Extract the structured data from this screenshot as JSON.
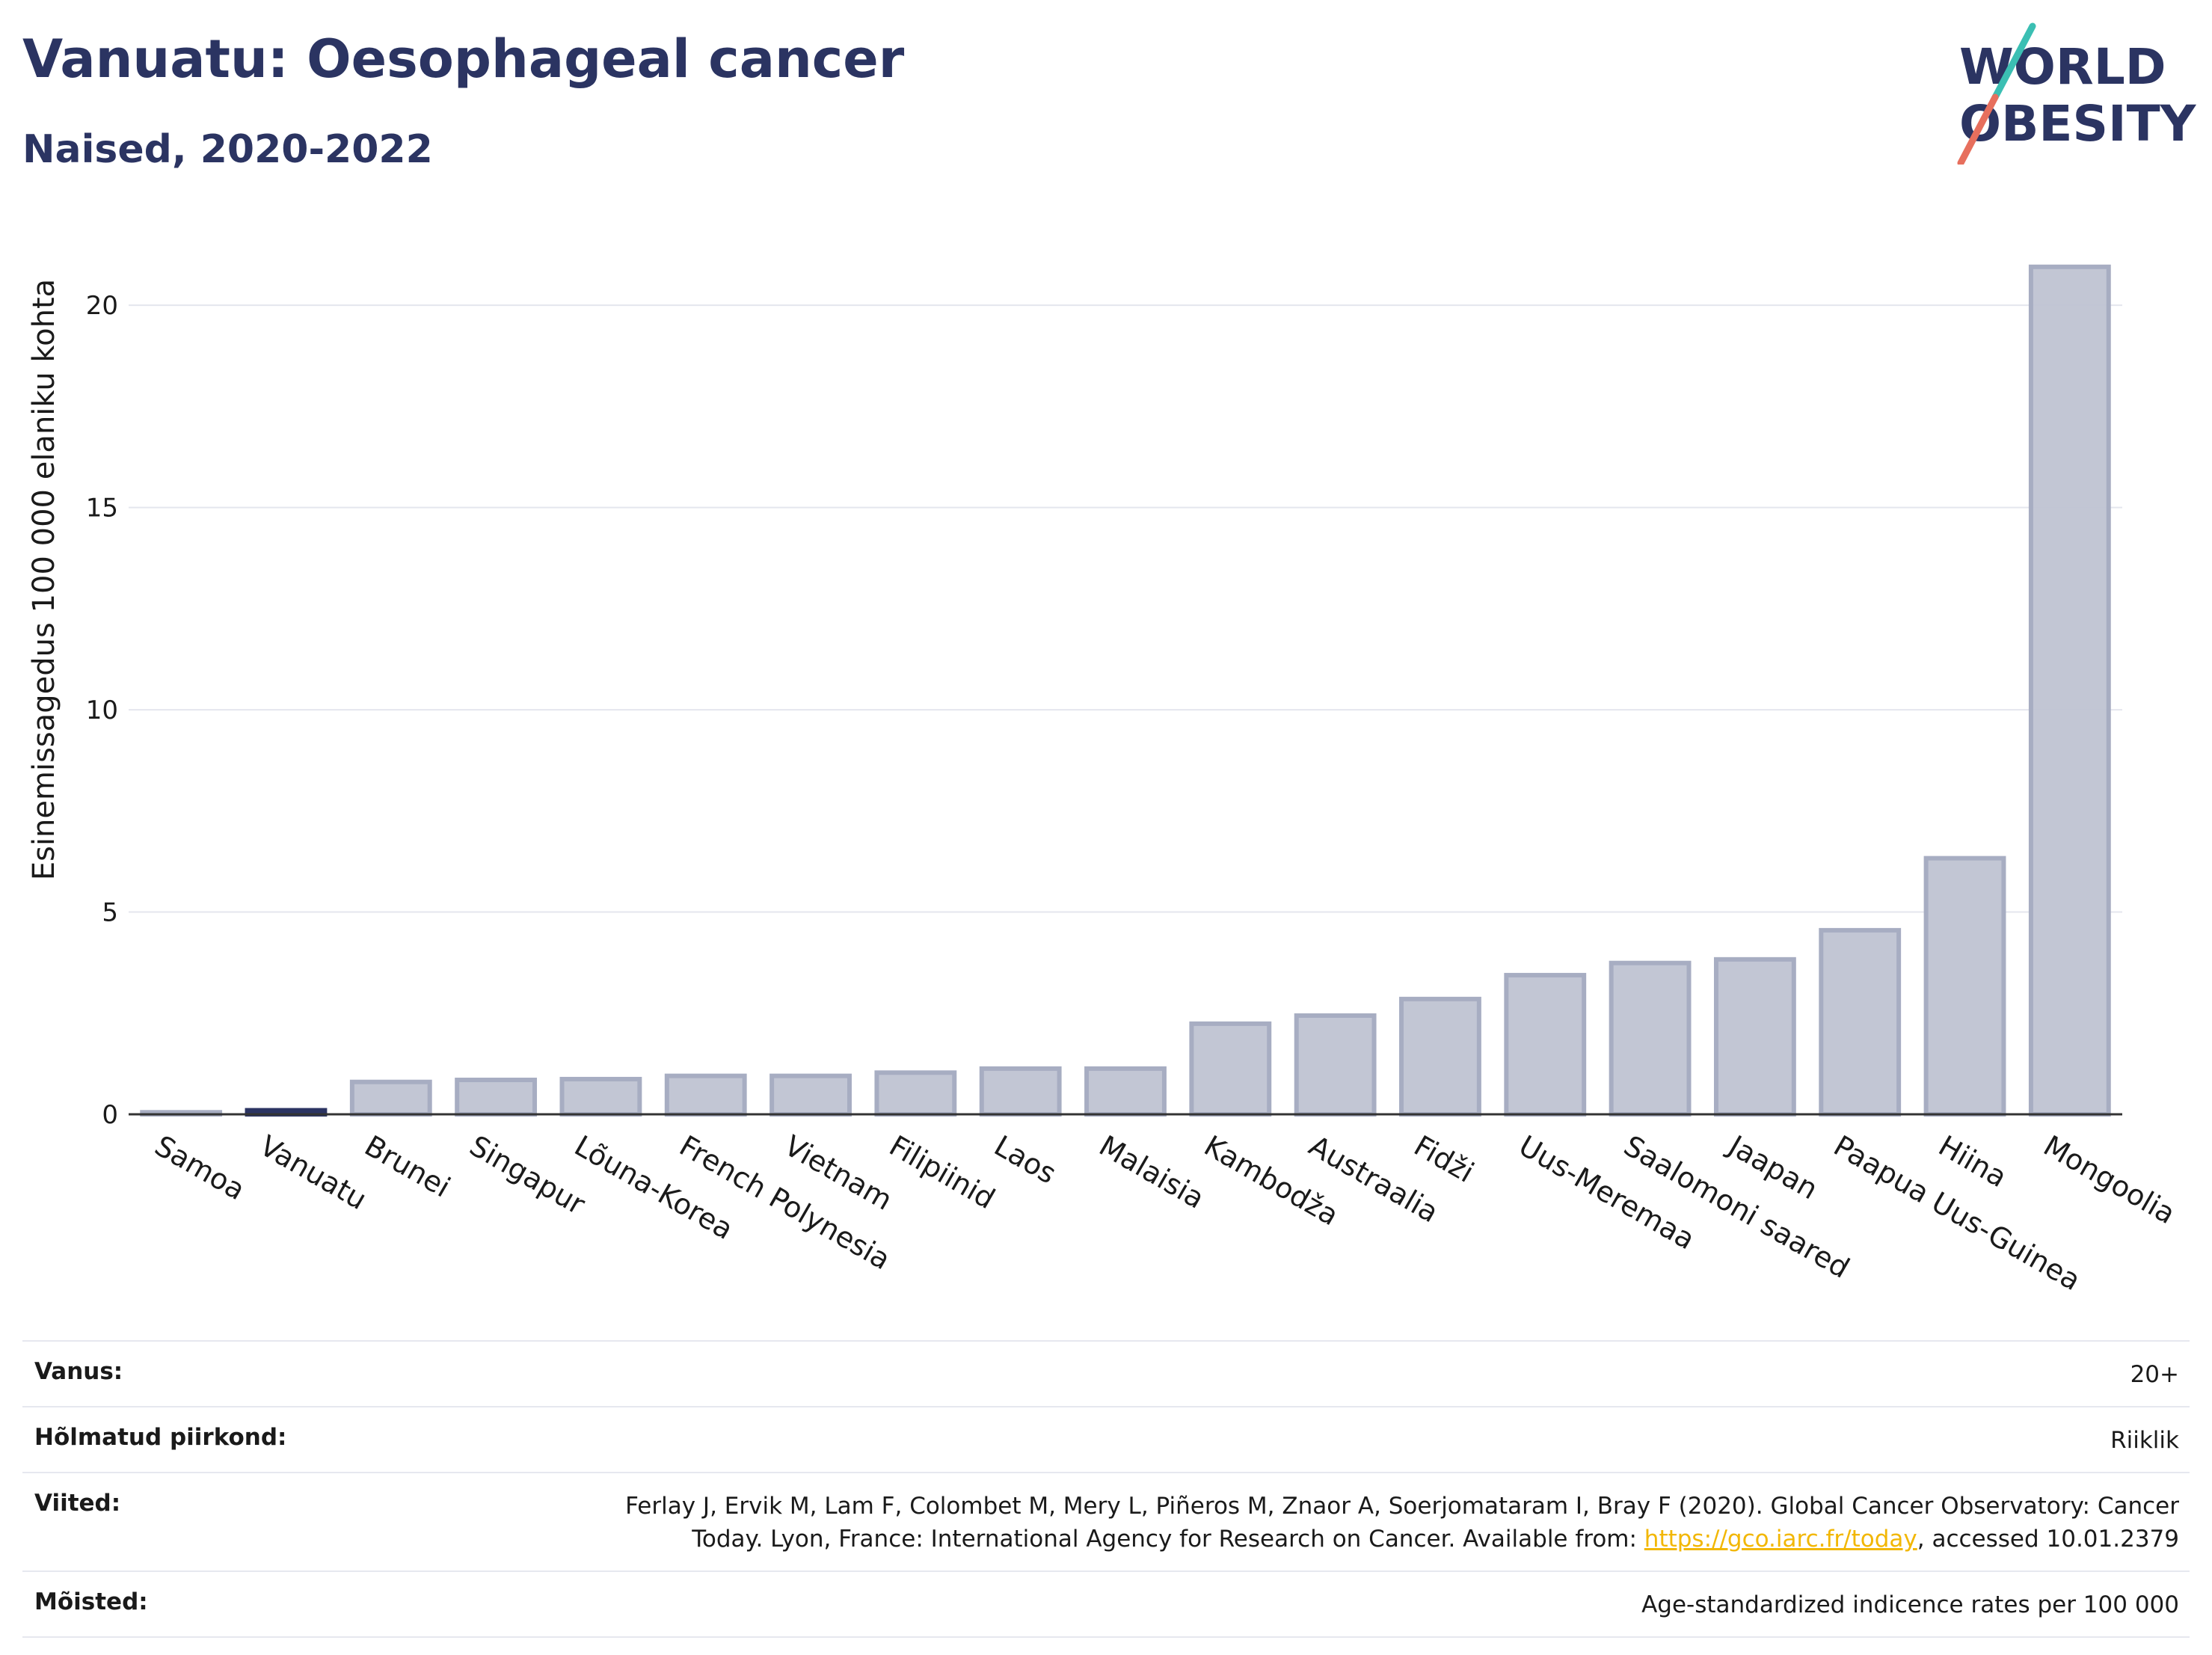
{
  "header": {
    "title": "Vanuatu: Oesophageal cancer",
    "subtitle": "Naised, 2020-2022"
  },
  "logo": {
    "line1": "WORLD",
    "line2": "OBESITY",
    "text_color": "#2b3462",
    "slash_top_color": "#3bbfb3",
    "slash_bottom_color": "#e76f5d"
  },
  "chart_data": {
    "type": "bar",
    "title": "Vanuatu: Oesophageal cancer",
    "subtitle": "Naised, 2020-2022",
    "xlabel": "",
    "ylabel": "Esinemissagedus 100 000 elaniku kohta",
    "ylim": [
      0,
      22
    ],
    "yticks": [
      0,
      5,
      10,
      15,
      20
    ],
    "grid": true,
    "highlight": "Vanuatu",
    "colors": {
      "default_fill": "#bfc3d2",
      "default_stroke": "#a7adc2",
      "highlight": "#2b3462"
    },
    "categories": [
      "Samoa",
      "Vanuatu",
      "Brunei",
      "Singapur",
      "Lõuna-Korea",
      "French Polynesia",
      "Vietnam",
      "Filipiinid",
      "Laos",
      "Malaisia",
      "Kambodža",
      "Austraalia",
      "Fidži",
      "Uus-Meremaa",
      "Saalomoni saared",
      "Jaapan",
      "Paapua Uus-Guinea",
      "Hiina",
      "Mongoolia"
    ],
    "values": [
      0.05,
      0.1,
      0.8,
      0.85,
      0.87,
      0.95,
      0.95,
      1.03,
      1.13,
      1.13,
      2.24,
      2.44,
      2.85,
      3.44,
      3.74,
      3.83,
      4.55,
      6.33,
      20.95
    ]
  },
  "meta": [
    {
      "label": "Vanus:",
      "value": "20+"
    },
    {
      "label": "Hõlmatud piirkond:",
      "value": "Riiklik"
    },
    {
      "label": "Viited:",
      "value_before": "Ferlay J, Ervik M, Lam F, Colombet M, Mery L, Piñeros M, Znaor A, Soerjomataram I, Bray F (2020). Global Cancer Observatory: Cancer Today. Lyon, France: International Agency for Research on Cancer. Available from: ",
      "link": "https://gco.iarc.fr/today",
      "value_after": ", accessed 10.01.2379"
    },
    {
      "label": "Mõisted:",
      "value": "Age-standardized indicence rates per 100 000"
    }
  ]
}
